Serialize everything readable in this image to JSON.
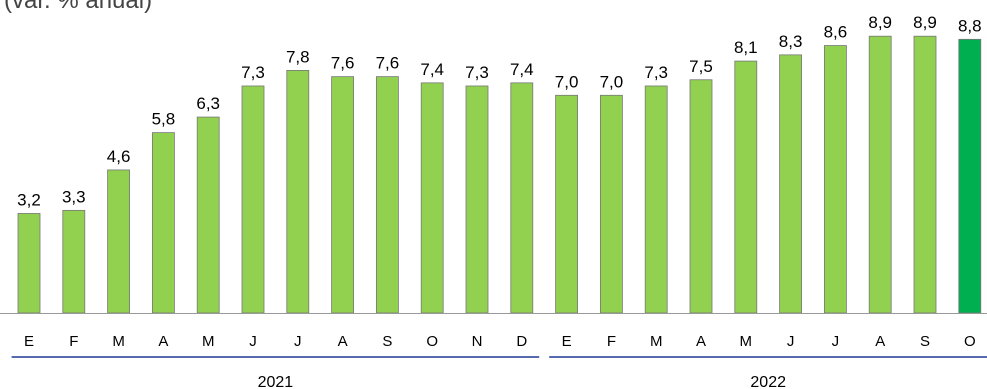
{
  "chart_data": {
    "type": "bar",
    "title": "(var. % anual)",
    "xlabel": "",
    "ylabel": "",
    "ylim": [
      0,
      9.6
    ],
    "grid": false,
    "legend": "none",
    "categories": [
      "E",
      "F",
      "M",
      "A",
      "M",
      "J",
      "J",
      "A",
      "S",
      "O",
      "N",
      "D",
      "E",
      "F",
      "M",
      "A",
      "M",
      "J",
      "J",
      "A",
      "S",
      "O"
    ],
    "values": [
      3.2,
      3.3,
      4.6,
      5.8,
      6.3,
      7.3,
      7.8,
      7.6,
      7.6,
      7.4,
      7.3,
      7.4,
      7.0,
      7.0,
      7.3,
      7.5,
      8.1,
      8.3,
      8.6,
      8.9,
      8.9,
      8.8
    ],
    "labels": [
      "3,2",
      "3,3",
      "4,6",
      "5,8",
      "6,3",
      "7,3",
      "7,8",
      "7,6",
      "7,6",
      "7,4",
      "7,3",
      "7,4",
      "7,0",
      "7,0",
      "7,3",
      "7,5",
      "8,1",
      "8,3",
      "8,6",
      "8,9",
      "8,9",
      "8,8"
    ],
    "highlight_index": 21,
    "groups": [
      {
        "label": "2021",
        "start": 0,
        "end": 11
      },
      {
        "label": "2022",
        "start": 12,
        "end": 21
      }
    ]
  },
  "colors": {
    "bar": "#92d050",
    "highlight": "#00b050",
    "bar_outline": "#777777",
    "group_line": "#1f3a93",
    "axis": "#999999",
    "text": "#000000",
    "title": "#444444"
  }
}
